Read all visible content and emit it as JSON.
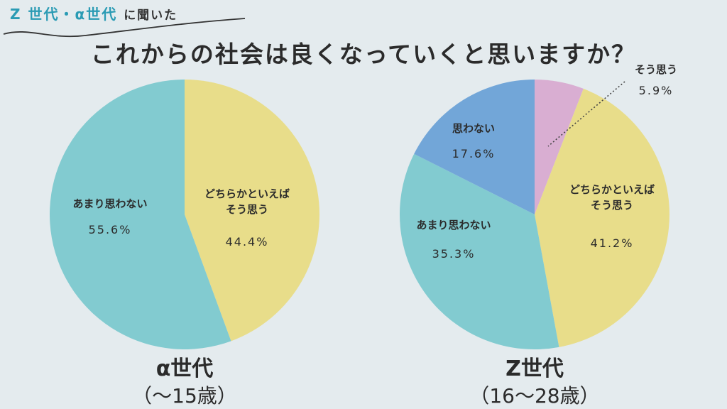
{
  "header": {
    "tag_highlight": "Z 世代・α世代",
    "tag_rest": "に聞いた",
    "title": "これからの社会は良くなっていくと思いますか？"
  },
  "colors": {
    "yellow": "#e8dd8a",
    "teal": "#82cbd0",
    "blue": "#72a6d8",
    "pink": "#d9aed2"
  },
  "chart_data": [
    {
      "type": "pie",
      "title": "α世代",
      "subtitle": "（〜15歳）",
      "slices": [
        {
          "label": "どちらかといえば\nそう思う",
          "value": 44.4,
          "display": "44.4%",
          "color": "#e8dd8a"
        },
        {
          "label": "あまり思わない",
          "value": 55.6,
          "display": "55.6%",
          "color": "#82cbd0"
        }
      ]
    },
    {
      "type": "pie",
      "title": "Z世代",
      "subtitle": "（16〜28歳）",
      "slices": [
        {
          "label": "そう思う",
          "value": 5.9,
          "display": "5.9%",
          "color": "#d9aed2"
        },
        {
          "label": "どちらかといえば\nそう思う",
          "value": 41.2,
          "display": "41.2%",
          "color": "#e8dd8a"
        },
        {
          "label": "あまり思わない",
          "value": 35.3,
          "display": "35.3%",
          "color": "#82cbd0"
        },
        {
          "label": "思わない",
          "value": 17.6,
          "display": "17.6%",
          "color": "#72a6d8"
        }
      ]
    }
  ]
}
